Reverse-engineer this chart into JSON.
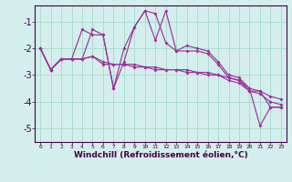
{
  "xlabel": "Windchill (Refroidissement éolien,°C)",
  "line_color": "#993399",
  "bg_color": "#d4eeed",
  "grid_color": "#aaddcc",
  "ylim": [
    -5.5,
    -0.4
  ],
  "yticks": [
    -5,
    -4,
    -3,
    -2,
    -1
  ],
  "hours": [
    0,
    1,
    2,
    3,
    4,
    5,
    6,
    7,
    8,
    9,
    10,
    11,
    12,
    13,
    14,
    15,
    16,
    17,
    18,
    19,
    20,
    21,
    22,
    23
  ],
  "line1_y": [
    -2.0,
    -2.8,
    -2.4,
    -2.4,
    -2.4,
    -2.3,
    -2.6,
    -2.6,
    -2.6,
    -2.6,
    -2.7,
    -2.7,
    -2.8,
    -2.8,
    -2.8,
    -2.9,
    -2.9,
    -3.0,
    -3.1,
    -3.2,
    -3.5,
    -3.6,
    -3.8,
    -3.9
  ],
  "line2_y": [
    -2.0,
    -2.8,
    -2.4,
    -2.4,
    -2.4,
    -2.3,
    -2.5,
    -2.6,
    -2.6,
    -2.7,
    -2.7,
    -2.8,
    -2.8,
    -2.8,
    -2.9,
    -2.9,
    -3.0,
    -3.0,
    -3.2,
    -3.3,
    -3.6,
    -3.7,
    -4.0,
    -4.1
  ],
  "line3_y": [
    -2.0,
    -2.8,
    -2.4,
    -2.4,
    -1.3,
    -1.5,
    -1.5,
    -3.5,
    -2.5,
    -1.2,
    -0.6,
    -0.7,
    -1.8,
    -2.1,
    -1.9,
    -2.0,
    -2.1,
    -2.5,
    -3.0,
    -3.1,
    -3.5,
    -4.9,
    -4.2,
    -4.2
  ],
  "line4_y": [
    -2.0,
    -2.8,
    -2.4,
    -2.4,
    -2.4,
    -1.3,
    -1.5,
    -3.5,
    -2.0,
    -1.2,
    -0.6,
    -1.7,
    -0.6,
    -2.1,
    -2.1,
    -2.1,
    -2.2,
    -2.6,
    -3.1,
    -3.2,
    -3.6,
    -3.6,
    -4.2,
    -4.2
  ]
}
